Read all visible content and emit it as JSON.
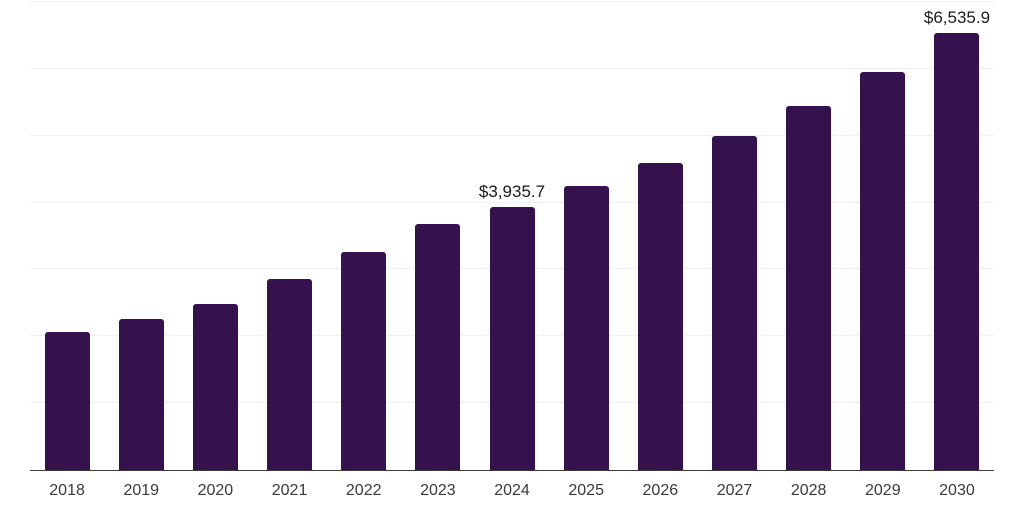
{
  "chart_data": {
    "type": "bar",
    "title": "",
    "xlabel": "",
    "ylabel": "",
    "categories": [
      "2018",
      "2019",
      "2020",
      "2021",
      "2022",
      "2023",
      "2024",
      "2025",
      "2026",
      "2027",
      "2028",
      "2029",
      "2030"
    ],
    "values": [
      2065,
      2255,
      2480,
      2850,
      3265,
      3680,
      3935.7,
      4255,
      4595,
      4995,
      5445,
      5960,
      6535.9
    ],
    "value_labels": [
      "",
      "",
      "",
      "",
      "",
      "",
      "$3,935.7",
      "",
      "",
      "",
      "",
      "",
      "$6,535.9"
    ],
    "labeled_points": [
      {
        "category": "2024",
        "label": "$3,935.7",
        "value": 3935.7
      },
      {
        "category": "2030",
        "label": "$6,535.9",
        "value": 6535.9
      }
    ],
    "ylim": [
      0,
      7000
    ],
    "gridline_step": 1000,
    "grid": true,
    "y_tick_labels_visible": false,
    "legend_position": "none",
    "colors": {
      "bar": "#35114E",
      "gridline": "#F0F0F0",
      "axis_line": "#3B3B3B",
      "tick_label": "#3A3A3A",
      "value_label": "#1A1A1A",
      "background": "#FFFFFF"
    }
  }
}
